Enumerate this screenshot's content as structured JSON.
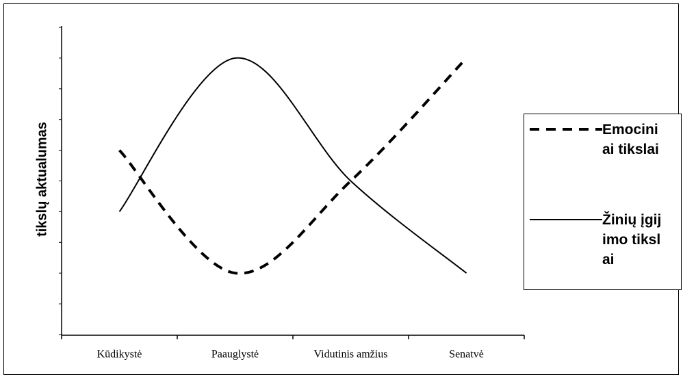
{
  "chart_data": {
    "type": "line",
    "ylabel": "tikslų aktualumas",
    "categories": [
      "Kūdikystė",
      "Paauglystė",
      "Vidutinis amžius",
      "Senatvė"
    ],
    "series": [
      {
        "name": "Emociniai tikslai",
        "color": "#000000",
        "dash": true,
        "values": [
          6,
          2,
          5,
          9
        ]
      },
      {
        "name": "Žinių įgijimo tikslai",
        "color": "#000000",
        "dash": false,
        "values": [
          4,
          9,
          5,
          2
        ]
      }
    ],
    "ylim": [
      0,
      10
    ],
    "yticks": [
      0,
      1,
      2,
      3,
      4,
      5,
      6,
      7,
      8,
      9,
      10
    ],
    "grid": false,
    "smooth": true,
    "legend": "right"
  }
}
